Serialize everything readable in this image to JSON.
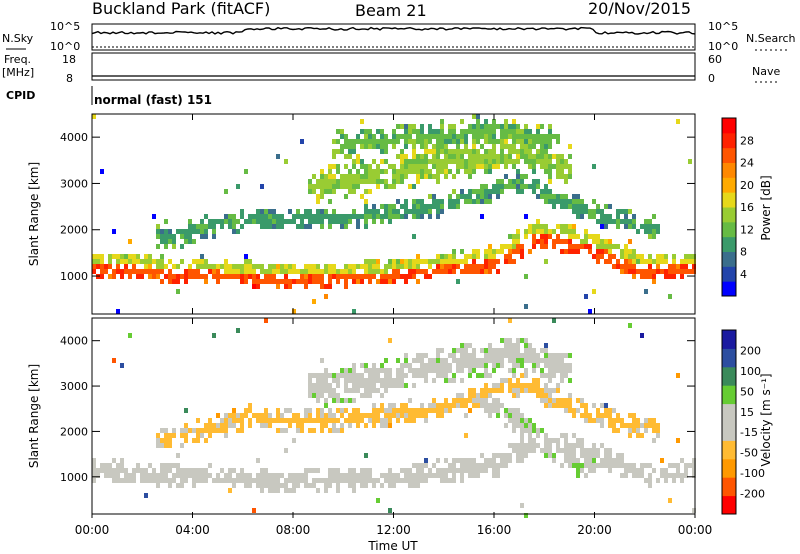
{
  "header": {
    "station": "Buckland Park (fitACF)",
    "beam": "Beam 21",
    "date": "20/Nov/2015"
  },
  "status_panels": {
    "nsky_label": "N.Sky",
    "nsearch_label": "N.Search",
    "nsky_ticks": [
      "10^5",
      "10^0"
    ],
    "nsearch_ticks": [
      "10^5",
      "10^0"
    ],
    "freq_label": "Freq.",
    "freq_unit": "[MHz]",
    "freq_ticks": [
      "18",
      "8"
    ],
    "nave_label": "Nave",
    "nave_ticks": [
      "60",
      "0"
    ],
    "cpid_label": "CPID",
    "cpid_text": "normal (fast) 151"
  },
  "colors": {
    "power": [
      "#0000ff",
      "#2244aa",
      "#3a6e8c",
      "#3a9a6a",
      "#66bb44",
      "#99cc33",
      "#e6d81a",
      "#ffaa00",
      "#ff8800",
      "#ff5500",
      "#ff2200",
      "#ff0000"
    ],
    "velocity": [
      "#ff0000",
      "#ff5500",
      "#ff9900",
      "#ffbb33",
      "#c8c8c0",
      "#c8c8c0",
      "#66cc33",
      "#3a8a5a",
      "#2c4ea0",
      "#1a1aa0"
    ]
  },
  "chart_data": [
    {
      "type": "heatmap",
      "name": "power",
      "ylabel": "Slant Range [km]",
      "yticks": [
        "1000",
        "2000",
        "3000",
        "4000"
      ],
      "ylim": [
        180,
        4500
      ],
      "xlim_hours": [
        0,
        24
      ],
      "colorbar_label": "Power [dB]",
      "colorbar_ticks": [
        "4",
        "8",
        "12",
        "16",
        "20",
        "24",
        "28"
      ],
      "colorbar_range": [
        0,
        32
      ],
      "bands": [
        {
          "t": [
            0,
            8,
            12,
            16,
            17.5,
            19,
            22,
            24
          ],
          "center": [
            1200,
            950,
            1050,
            1300,
            1800,
            1750,
            1100,
            1200
          ],
          "width": 180,
          "value": 26
        },
        {
          "t": [
            0,
            8,
            12,
            16,
            17.5,
            19,
            22,
            24
          ],
          "center": [
            1420,
            1150,
            1250,
            1550,
            2100,
            2000,
            1400,
            1400
          ],
          "width": 160,
          "value": 16
        },
        {
          "t": [
            3,
            6,
            10,
            14,
            17,
            19,
            22
          ],
          "center": [
            1900,
            2300,
            2300,
            2600,
            3100,
            2600,
            2100
          ],
          "width": 250,
          "value": 10
        },
        {
          "t": [
            9,
            12,
            15,
            17,
            18.5
          ],
          "center": [
            3000,
            3300,
            3600,
            3800,
            3400
          ],
          "width": 400,
          "value": 14
        },
        {
          "t": [
            10,
            14,
            16,
            18
          ],
          "center": [
            3900,
            4100,
            4200,
            4000
          ],
          "width": 300,
          "value": 12
        }
      ]
    },
    {
      "type": "heatmap",
      "name": "velocity",
      "ylabel": "Slant Range [km]",
      "yticks": [
        "1000",
        "2000",
        "3000",
        "4000"
      ],
      "ylim": [
        180,
        4500
      ],
      "xlim_hours": [
        0,
        24
      ],
      "xticks": [
        "00:00",
        "04:00",
        "08:00",
        "12:00",
        "16:00",
        "20:00",
        "00:00"
      ],
      "xlabel": "Time UT",
      "colorbar_label": "Velocity [m s⁻¹]",
      "colorbar_ticks": [
        "-200",
        "-100",
        "-50",
        "-15",
        "15",
        "50",
        "100",
        "200"
      ],
      "colorbar_range": [
        -250,
        250
      ],
      "bands": [
        {
          "t": [
            0,
            8,
            12,
            16,
            17.5,
            19,
            22,
            24
          ],
          "center": [
            1200,
            950,
            1050,
            1300,
            1800,
            1750,
            1100,
            1200
          ],
          "width": 260,
          "value": 0
        },
        {
          "t": [
            3,
            6,
            10,
            14,
            17,
            19,
            22
          ],
          "center": [
            1900,
            2300,
            2300,
            2600,
            3100,
            2600,
            2100
          ],
          "width": 250,
          "value": -60
        },
        {
          "t": [
            9,
            12,
            15,
            17,
            18.5
          ],
          "center": [
            3000,
            3300,
            3600,
            3800,
            3400
          ],
          "width": 400,
          "value": 30
        },
        {
          "t": [
            16,
            18,
            19.5
          ],
          "center": [
            2600,
            1800,
            1300
          ],
          "width": 300,
          "value": 40
        }
      ]
    }
  ]
}
